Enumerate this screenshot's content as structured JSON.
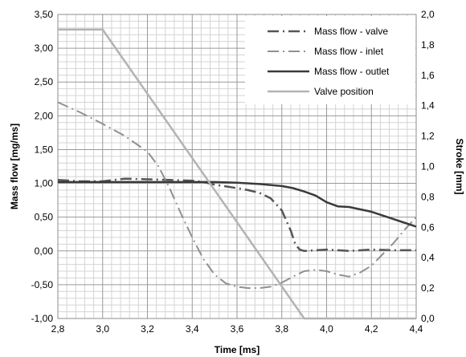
{
  "chart_data": {
    "type": "line",
    "title": "",
    "xlabel": "Time [ms]",
    "ylabel": "Mass flow [mg/ms]",
    "y2label": "Stroke [mm]",
    "xlim": [
      2.8,
      4.4
    ],
    "ylim": [
      -1.0,
      3.5
    ],
    "y2lim": [
      0.0,
      2.0
    ],
    "x_ticks": [
      "2,8",
      "3,0",
      "3,2",
      "3,4",
      "3,6",
      "3,8",
      "4,0",
      "4,2",
      "4,4"
    ],
    "y_ticks": [
      "-1,00",
      "-0,50",
      "0,00",
      "0,50",
      "1,00",
      "1,50",
      "2,00",
      "2,50",
      "3,00",
      "3,50"
    ],
    "y2_ticks": [
      "0,0",
      "0,2",
      "0,4",
      "0,6",
      "0,8",
      "1,0",
      "1,2",
      "1,4",
      "1,6",
      "1,8",
      "2,0"
    ],
    "grid": true,
    "legend_position": "top-right",
    "series": [
      {
        "name": "Mass flow - valve",
        "axis": "left",
        "style": "dash-dot",
        "color": "#555555",
        "x": [
          2.8,
          2.9,
          3.0,
          3.05,
          3.1,
          3.2,
          3.3,
          3.4,
          3.45,
          3.5,
          3.6,
          3.65,
          3.7,
          3.75,
          3.8,
          3.82,
          3.84,
          3.86,
          3.88,
          3.9,
          4.0,
          4.1,
          4.2,
          4.3,
          4.4
        ],
        "y": [
          1.05,
          1.03,
          1.03,
          1.05,
          1.07,
          1.06,
          1.05,
          1.04,
          1.02,
          0.98,
          0.93,
          0.9,
          0.86,
          0.78,
          0.6,
          0.45,
          0.3,
          0.1,
          0.02,
          0.0,
          0.02,
          0.0,
          0.02,
          0.01,
          0.01
        ]
      },
      {
        "name": "Mass flow - inlet",
        "axis": "left",
        "style": "dash-dot",
        "color": "#909090",
        "x": [
          2.8,
          2.9,
          3.0,
          3.1,
          3.2,
          3.25,
          3.3,
          3.35,
          3.4,
          3.45,
          3.5,
          3.55,
          3.6,
          3.65,
          3.7,
          3.75,
          3.8,
          3.85,
          3.9,
          3.95,
          4.0,
          4.05,
          4.1,
          4.15,
          4.2,
          4.25,
          4.3,
          4.35,
          4.4
        ],
        "y": [
          2.2,
          2.05,
          1.88,
          1.7,
          1.47,
          1.25,
          0.92,
          0.55,
          0.2,
          -0.12,
          -0.35,
          -0.48,
          -0.53,
          -0.55,
          -0.55,
          -0.53,
          -0.47,
          -0.38,
          -0.3,
          -0.28,
          -0.3,
          -0.35,
          -0.38,
          -0.32,
          -0.22,
          -0.05,
          0.12,
          0.32,
          0.5
        ]
      },
      {
        "name": "Mass flow - outlet",
        "axis": "left",
        "style": "solid",
        "color": "#3a3a3a",
        "x": [
          2.8,
          3.0,
          3.2,
          3.4,
          3.5,
          3.6,
          3.7,
          3.8,
          3.85,
          3.9,
          3.95,
          4.0,
          4.05,
          4.1,
          4.2,
          4.3,
          4.4
        ],
        "y": [
          1.02,
          1.02,
          1.02,
          1.02,
          1.02,
          1.01,
          0.99,
          0.96,
          0.93,
          0.88,
          0.82,
          0.72,
          0.66,
          0.65,
          0.58,
          0.47,
          0.36
        ]
      },
      {
        "name": "Valve position",
        "axis": "right",
        "style": "solid",
        "color": "#b3b3b3",
        "x": [
          2.8,
          3.0,
          3.9,
          4.4
        ],
        "y": [
          1.9,
          1.9,
          0.0,
          0.0
        ]
      }
    ]
  }
}
